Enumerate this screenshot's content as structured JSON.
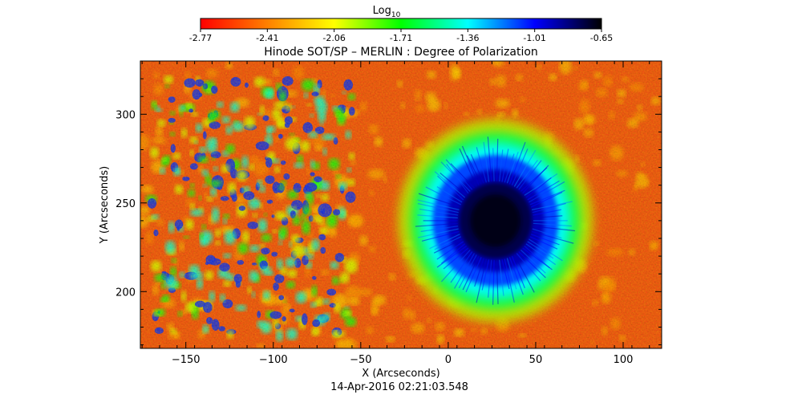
{
  "chart_data": {
    "type": "heatmap",
    "title": "Hinode SOT/SP – MERLIN : Degree of Polarization",
    "xlabel": "X (Arcseconds)",
    "ylabel": "Y (Arcseconds)",
    "footer": "14-Apr-2016 02:21:03.548",
    "xlim": [
      -176,
      122
    ],
    "ylim": [
      168,
      330
    ],
    "xticks": [
      -150,
      -100,
      -50,
      0,
      50,
      100
    ],
    "yticks": [
      200,
      250,
      300
    ],
    "grid": false,
    "colorbar": {
      "label_base": "Log",
      "label_sub": "10",
      "ticks": [
        "-2.77",
        "-2.41",
        "-2.06",
        "-1.71",
        "-1.36",
        "-1.01",
        "-0.65"
      ],
      "range": [
        -2.77,
        -0.65
      ],
      "colormap": [
        "#ff0000",
        "#ff8000",
        "#ffff00",
        "#00ff00",
        "#00ffff",
        "#0000ff",
        "#000000"
      ]
    },
    "features": {
      "sunspot_umbra": {
        "center_x": 27,
        "center_y": 240,
        "value": -0.72
      },
      "sunspot_penumbra": {
        "radius_x": 36,
        "radius_y": 37,
        "value": -1.1
      },
      "background_quiet_sun": {
        "value": -2.6
      },
      "plage_network_region": {
        "x_range": [
          -170,
          -55
        ],
        "y_range": [
          175,
          320
        ],
        "value": -1.45
      }
    }
  }
}
